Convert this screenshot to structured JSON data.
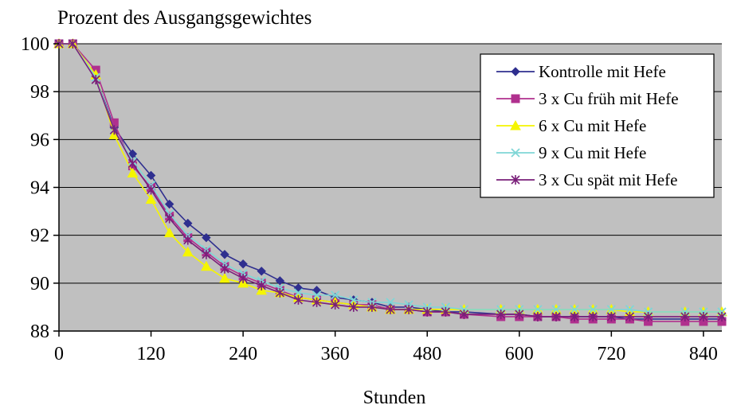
{
  "chart_data": {
    "type": "line",
    "title": "Prozent des Ausgangsgewichtes",
    "xlabel": "Stunden",
    "ylabel": "",
    "xlim": [
      0,
      864
    ],
    "ylim": [
      88,
      100
    ],
    "x_ticks": [
      0,
      120,
      240,
      360,
      480,
      600,
      720,
      840
    ],
    "y_ticks": [
      88,
      90,
      92,
      94,
      96,
      98,
      100
    ],
    "x_tick_labels": [
      "0",
      "120",
      "240",
      "360",
      "480",
      "600",
      "720",
      "840"
    ],
    "y_tick_labels": [
      "88",
      "90",
      "92",
      "94",
      "96",
      "98",
      "100"
    ],
    "grid": "horizontal",
    "legend_position": "top-right",
    "plot_background": "#c0c0c0",
    "series": [
      {
        "name": "Kontrolle mit Hefe",
        "color": "#2f2f8f",
        "marker": "diamond",
        "x": [
          0,
          18,
          48,
          72,
          96,
          120,
          144,
          168,
          192,
          216,
          240,
          264,
          288,
          312,
          336,
          360,
          384,
          408,
          432,
          456,
          480,
          504,
          528,
          576,
          600,
          624,
          648,
          672,
          696,
          720,
          744,
          768,
          816,
          840,
          864
        ],
        "y": [
          100,
          100,
          98.6,
          96.5,
          95.4,
          94.5,
          93.3,
          92.5,
          91.9,
          91.2,
          90.8,
          90.5,
          90.1,
          89.8,
          89.7,
          89.4,
          89.3,
          89.2,
          89.0,
          89.0,
          88.9,
          88.8,
          88.8,
          88.7,
          88.7,
          88.6,
          88.6,
          88.6,
          88.6,
          88.6,
          88.5,
          88.5,
          88.5,
          88.5,
          88.5
        ]
      },
      {
        "name": "3 x Cu früh mit Hefe",
        "color": "#b0308e",
        "marker": "square",
        "x": [
          0,
          18,
          48,
          72,
          96,
          120,
          144,
          168,
          192,
          216,
          240,
          264,
          288,
          312,
          336,
          360,
          384,
          408,
          432,
          456,
          480,
          504,
          528,
          576,
          600,
          624,
          648,
          672,
          696,
          720,
          744,
          768,
          816,
          840,
          864
        ],
        "y": [
          100,
          100,
          98.9,
          96.7,
          94.9,
          94.0,
          92.8,
          91.9,
          91.3,
          90.7,
          90.3,
          90.0,
          89.7,
          89.4,
          89.3,
          89.2,
          89.1,
          89.1,
          88.9,
          88.9,
          88.8,
          88.8,
          88.7,
          88.6,
          88.6,
          88.6,
          88.6,
          88.5,
          88.5,
          88.5,
          88.5,
          88.4,
          88.4,
          88.4,
          88.4
        ]
      },
      {
        "name": "6 x Cu mit Hefe",
        "color": "#f5f500",
        "marker": "triangle",
        "x": [
          0,
          18,
          48,
          72,
          96,
          120,
          144,
          168,
          192,
          216,
          240,
          264,
          288,
          312,
          336,
          360,
          384,
          408,
          432,
          456,
          480,
          504,
          528,
          576,
          600,
          624,
          648,
          672,
          696,
          720,
          744,
          768,
          816,
          840,
          864
        ],
        "y": [
          100,
          100,
          98.7,
          96.2,
          94.6,
          93.5,
          92.1,
          91.3,
          90.7,
          90.2,
          90.0,
          89.7,
          89.6,
          89.4,
          89.3,
          89.2,
          89.1,
          89.0,
          88.9,
          88.9,
          88.9,
          88.9,
          88.9,
          88.9,
          88.9,
          88.9,
          88.9,
          88.9,
          88.9,
          88.9,
          88.8,
          88.8,
          88.8,
          88.8,
          88.8
        ]
      },
      {
        "name": "9 x Cu mit Hefe",
        "color": "#7fd6d6",
        "marker": "x",
        "x": [
          0,
          18,
          48,
          72,
          96,
          120,
          144,
          168,
          192,
          216,
          240,
          264,
          288,
          312,
          336,
          360,
          384,
          408,
          432,
          456,
          480,
          504,
          528,
          576,
          600,
          624,
          648,
          672,
          696,
          720,
          744,
          768,
          816,
          840,
          864
        ],
        "y": [
          100,
          100,
          98.6,
          96.4,
          95.1,
          94.1,
          92.9,
          92.0,
          91.4,
          90.8,
          90.4,
          90.1,
          89.8,
          89.6,
          89.5,
          89.5,
          89.3,
          89.2,
          89.2,
          89.1,
          89.0,
          89.0,
          88.9,
          88.9,
          88.9,
          88.9,
          88.9,
          88.9,
          88.9,
          88.9,
          88.9,
          88.8,
          88.8,
          88.8,
          88.8
        ]
      },
      {
        "name": "3 x Cu spät mit Hefe",
        "color": "#7a1f7a",
        "marker": "star",
        "x": [
          0,
          18,
          48,
          72,
          96,
          120,
          144,
          168,
          192,
          216,
          240,
          264,
          288,
          312,
          336,
          360,
          384,
          408,
          432,
          456,
          480,
          504,
          528,
          576,
          600,
          624,
          648,
          672,
          696,
          720,
          744,
          768,
          816,
          840,
          864
        ],
        "y": [
          100,
          100,
          98.5,
          96.4,
          95.0,
          93.9,
          92.7,
          91.8,
          91.2,
          90.6,
          90.2,
          89.9,
          89.6,
          89.3,
          89.2,
          89.1,
          89.0,
          89.0,
          88.9,
          88.9,
          88.8,
          88.8,
          88.7,
          88.7,
          88.7,
          88.6,
          88.6,
          88.6,
          88.6,
          88.6,
          88.6,
          88.6,
          88.6,
          88.6,
          88.6
        ]
      }
    ]
  }
}
